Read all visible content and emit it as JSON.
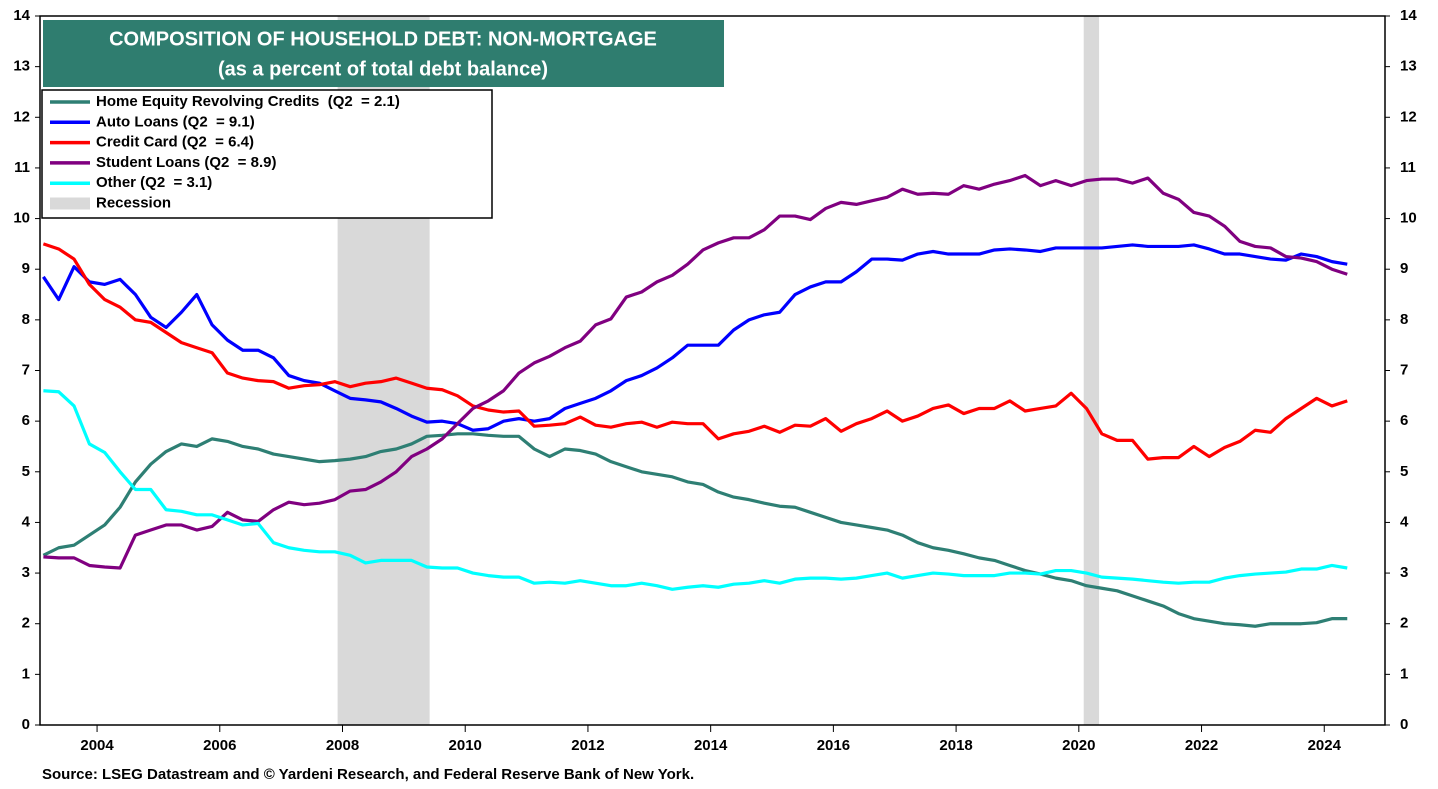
{
  "chart_data": {
    "type": "line",
    "title": "COMPOSITION OF HOUSEHOLD DEBT: NON-MORTGAGE",
    "subtitle": "(as a percent of total debt balance)",
    "source": "Source: LSEG Datastream and © Yardeni Research, and Federal Reserve Bank of New York.",
    "x": [
      2003.125,
      2003.375,
      2003.625,
      2003.875,
      2004.125,
      2004.375,
      2004.625,
      2004.875,
      2005.125,
      2005.375,
      2005.625,
      2005.875,
      2006.125,
      2006.375,
      2006.625,
      2006.875,
      2007.125,
      2007.375,
      2007.625,
      2007.875,
      2008.125,
      2008.375,
      2008.625,
      2008.875,
      2009.125,
      2009.375,
      2009.625,
      2009.875,
      2010.125,
      2010.375,
      2010.625,
      2010.875,
      2011.125,
      2011.375,
      2011.625,
      2011.875,
      2012.125,
      2012.375,
      2012.625,
      2012.875,
      2013.125,
      2013.375,
      2013.625,
      2013.875,
      2014.125,
      2014.375,
      2014.625,
      2014.875,
      2015.125,
      2015.375,
      2015.625,
      2015.875,
      2016.125,
      2016.375,
      2016.625,
      2016.875,
      2017.125,
      2017.375,
      2017.625,
      2017.875,
      2018.125,
      2018.375,
      2018.625,
      2018.875,
      2019.125,
      2019.375,
      2019.625,
      2019.875,
      2020.125,
      2020.375,
      2020.625,
      2020.875,
      2021.125,
      2021.375,
      2021.625,
      2021.875,
      2022.125,
      2022.375,
      2022.625,
      2022.875,
      2023.125,
      2023.375,
      2023.625,
      2023.875,
      2024.125,
      2024.375
    ],
    "xlim": [
      2003.07,
      2024.99
    ],
    "xticks": [
      2004,
      2006,
      2008,
      2010,
      2012,
      2014,
      2016,
      2018,
      2020,
      2022,
      2024
    ],
    "ylim": [
      0,
      14
    ],
    "yticks": [
      0,
      1,
      2,
      3,
      4,
      5,
      6,
      7,
      8,
      9,
      10,
      11,
      12,
      13,
      14
    ],
    "recession_label": "Recession",
    "recessions": [
      [
        2007.92,
        2009.42
      ],
      [
        2020.08,
        2020.33
      ]
    ],
    "series": [
      {
        "name": "Home Equity Revolving Credits  (Q2  = 2.1)",
        "color": "#2e7f74",
        "values": [
          3.35,
          3.5,
          3.55,
          3.75,
          3.95,
          4.3,
          4.8,
          5.15,
          5.4,
          5.55,
          5.5,
          5.65,
          5.6,
          5.5,
          5.45,
          5.35,
          5.3,
          5.25,
          5.2,
          5.22,
          5.25,
          5.3,
          5.4,
          5.45,
          5.55,
          5.7,
          5.72,
          5.75,
          5.75,
          5.72,
          5.7,
          5.7,
          5.45,
          5.3,
          5.45,
          5.42,
          5.35,
          5.2,
          5.1,
          5.0,
          4.95,
          4.9,
          4.8,
          4.75,
          4.6,
          4.5,
          4.45,
          4.38,
          4.32,
          4.3,
          4.2,
          4.1,
          4.0,
          3.95,
          3.9,
          3.85,
          3.75,
          3.6,
          3.5,
          3.45,
          3.38,
          3.3,
          3.25,
          3.15,
          3.05,
          2.98,
          2.9,
          2.85,
          2.75,
          2.7,
          2.65,
          2.55,
          2.45,
          2.35,
          2.2,
          2.1,
          2.05,
          2.0,
          1.98,
          1.95,
          2.0,
          2.0,
          2.0,
          2.02,
          2.1,
          2.1
        ]
      },
      {
        "name": "Auto Loans (Q2  = 9.1)",
        "color": "#0000ff",
        "values": [
          8.85,
          8.4,
          9.05,
          8.75,
          8.7,
          8.8,
          8.5,
          8.05,
          7.85,
          8.15,
          8.5,
          7.9,
          7.6,
          7.4,
          7.4,
          7.25,
          6.9,
          6.8,
          6.75,
          6.6,
          6.45,
          6.42,
          6.38,
          6.25,
          6.1,
          5.98,
          6.0,
          5.95,
          5.82,
          5.85,
          6.0,
          6.05,
          6.0,
          6.05,
          6.25,
          6.35,
          6.45,
          6.6,
          6.8,
          6.9,
          7.05,
          7.25,
          7.5,
          7.5,
          7.5,
          7.8,
          8.0,
          8.1,
          8.15,
          8.5,
          8.65,
          8.75,
          8.75,
          8.95,
          9.2,
          9.2,
          9.18,
          9.3,
          9.35,
          9.3,
          9.3,
          9.3,
          9.38,
          9.4,
          9.38,
          9.35,
          9.42,
          9.42,
          9.42,
          9.42,
          9.45,
          9.48,
          9.45,
          9.45,
          9.45,
          9.48,
          9.4,
          9.3,
          9.3,
          9.25,
          9.2,
          9.18,
          9.3,
          9.25,
          9.15,
          9.1
        ]
      },
      {
        "name": "Credit Card (Q2  = 6.4)",
        "color": "#ff0000",
        "values": [
          9.5,
          9.4,
          9.2,
          8.7,
          8.4,
          8.25,
          8.0,
          7.95,
          7.75,
          7.55,
          7.45,
          7.35,
          6.95,
          6.85,
          6.8,
          6.78,
          6.65,
          6.7,
          6.72,
          6.78,
          6.68,
          6.75,
          6.78,
          6.85,
          6.75,
          6.65,
          6.62,
          6.5,
          6.3,
          6.22,
          6.18,
          6.2,
          5.9,
          5.92,
          5.95,
          6.08,
          5.92,
          5.88,
          5.95,
          5.98,
          5.88,
          5.98,
          5.95,
          5.95,
          5.65,
          5.75,
          5.8,
          5.9,
          5.78,
          5.92,
          5.9,
          6.05,
          5.8,
          5.95,
          6.05,
          6.2,
          6.0,
          6.1,
          6.25,
          6.32,
          6.15,
          6.25,
          6.25,
          6.4,
          6.2,
          6.25,
          6.3,
          6.55,
          6.25,
          5.75,
          5.62,
          5.62,
          5.25,
          5.28,
          5.28,
          5.5,
          5.3,
          5.48,
          5.6,
          5.82,
          5.78,
          6.05,
          6.25,
          6.45,
          6.3,
          6.4
        ]
      },
      {
        "name": "Student Loans (Q2  = 8.9)",
        "color": "#800080",
        "values": [
          3.32,
          3.3,
          3.3,
          3.15,
          3.12,
          3.1,
          3.75,
          3.85,
          3.95,
          3.95,
          3.85,
          3.92,
          4.2,
          4.05,
          4.02,
          4.25,
          4.4,
          4.35,
          4.38,
          4.45,
          4.62,
          4.65,
          4.8,
          5.0,
          5.3,
          5.45,
          5.65,
          5.95,
          6.25,
          6.4,
          6.6,
          6.95,
          7.15,
          7.28,
          7.45,
          7.58,
          7.9,
          8.02,
          8.45,
          8.55,
          8.75,
          8.88,
          9.1,
          9.38,
          9.52,
          9.62,
          9.62,
          9.78,
          10.05,
          10.05,
          9.98,
          10.2,
          10.32,
          10.28,
          10.35,
          10.42,
          10.58,
          10.48,
          10.5,
          10.48,
          10.65,
          10.58,
          10.68,
          10.75,
          10.85,
          10.65,
          10.75,
          10.65,
          10.75,
          10.78,
          10.78,
          10.7,
          10.8,
          10.5,
          10.38,
          10.12,
          10.05,
          9.85,
          9.55,
          9.45,
          9.42,
          9.25,
          9.22,
          9.15,
          9.0,
          8.9
        ]
      },
      {
        "name": "Other (Q2  = 3.1)",
        "color": "#00ffff",
        "values": [
          6.6,
          6.58,
          6.3,
          5.55,
          5.38,
          5.0,
          4.65,
          4.65,
          4.25,
          4.22,
          4.15,
          4.15,
          4.05,
          3.95,
          3.98,
          3.6,
          3.5,
          3.45,
          3.42,
          3.42,
          3.35,
          3.2,
          3.25,
          3.25,
          3.25,
          3.12,
          3.1,
          3.1,
          3.0,
          2.95,
          2.92,
          2.92,
          2.8,
          2.82,
          2.8,
          2.85,
          2.8,
          2.75,
          2.75,
          2.8,
          2.75,
          2.68,
          2.72,
          2.75,
          2.72,
          2.78,
          2.8,
          2.85,
          2.8,
          2.88,
          2.9,
          2.9,
          2.88,
          2.9,
          2.95,
          3.0,
          2.9,
          2.95,
          3.0,
          2.98,
          2.95,
          2.95,
          2.95,
          3.0,
          3.0,
          2.98,
          3.05,
          3.05,
          3.0,
          2.92,
          2.9,
          2.88,
          2.85,
          2.82,
          2.8,
          2.82,
          2.82,
          2.9,
          2.95,
          2.98,
          3.0,
          3.02,
          3.08,
          3.08,
          3.15,
          3.1
        ]
      }
    ]
  }
}
